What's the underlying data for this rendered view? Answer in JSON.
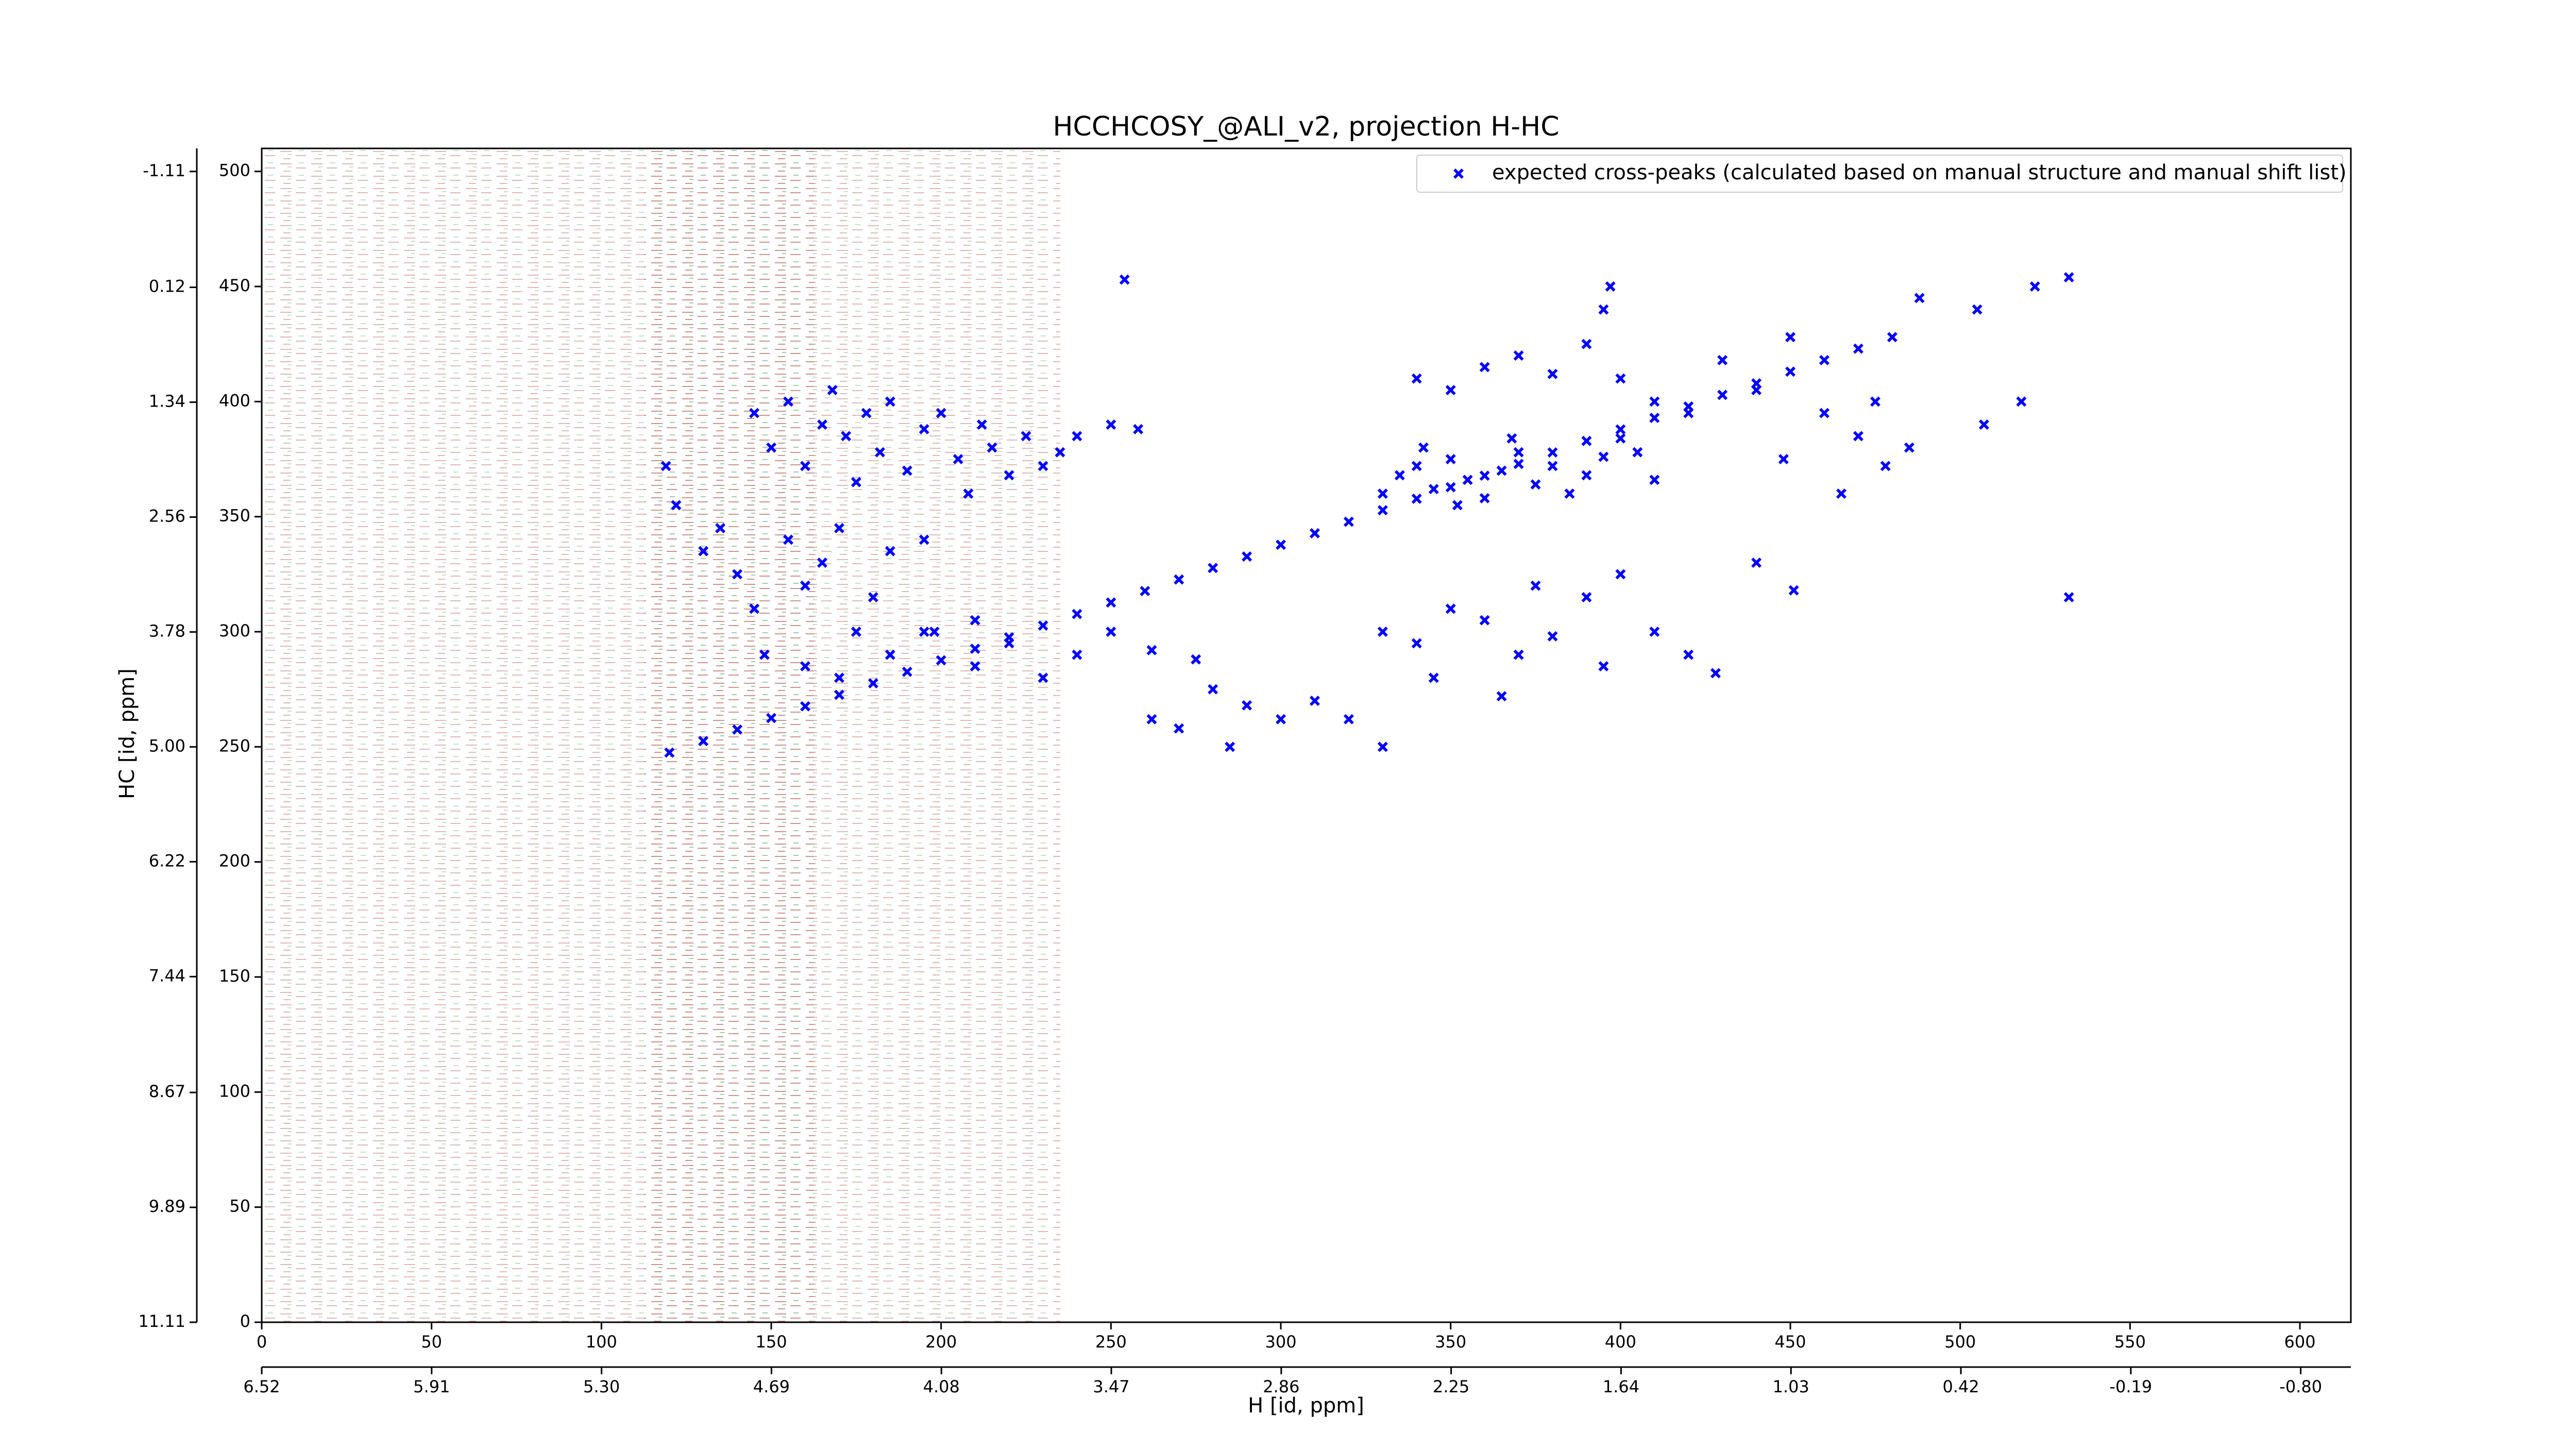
{
  "chart_data": {
    "type": "scatter",
    "title": "HCCHCOSY_@ALI_v2, projection H-HC",
    "x_label": "H [id, ppm]",
    "y_label": "HC [id, ppm]",
    "xlim": [
      0,
      615
    ],
    "xticks": [
      0,
      50,
      100,
      150,
      200,
      250,
      300,
      350,
      400,
      450,
      500,
      550,
      600
    ],
    "x2lim": [
      6.52,
      -0.98
    ],
    "x2ticks": [
      6.52,
      5.91,
      {
        "value": 5.3,
        "label": "5.30"
      },
      4.69,
      4.08,
      3.47,
      2.86,
      2.25,
      1.64,
      1.03,
      0.42,
      -0.19,
      {
        "value": -0.8,
        "label": "-0.80"
      }
    ],
    "ylim": [
      0,
      510
    ],
    "yticks": [
      0,
      50,
      100,
      150,
      200,
      250,
      300,
      350,
      400,
      450,
      500
    ],
    "y2lim": [
      11.11,
      -1.355
    ],
    "y2ticks": [
      11.11,
      9.89,
      8.67,
      7.44,
      6.22,
      {
        "value": 5.0,
        "label": "5.00"
      },
      3.78,
      2.56,
      1.34,
      0.12,
      -1.11
    ],
    "legend": "upper right",
    "grid": false,
    "series": [
      {
        "name": "expected cross-peaks (calculated based on manual structure and manual shift list)",
        "color": "#0000ff",
        "x": [
          120,
          130,
          140,
          150,
          160,
          170,
          180,
          190,
          200,
          210,
          220,
          230,
          240,
          250,
          260,
          270,
          280,
          290,
          300,
          310,
          320,
          330,
          340,
          350,
          360,
          370,
          380,
          390,
          400,
          410,
          420,
          430,
          440,
          450,
          460,
          470,
          480,
          145,
          150,
          155,
          160,
          165,
          168,
          172,
          175,
          178,
          182,
          185,
          190,
          195,
          200,
          205,
          208,
          212,
          215,
          220,
          225,
          230,
          235,
          240,
          250,
          258,
          119,
          122,
          130,
          135,
          140,
          145,
          148,
          155,
          160,
          165,
          170,
          175,
          180,
          185,
          195,
          198,
          160,
          170,
          185,
          195,
          210,
          220,
          230,
          240,
          250,
          262,
          210,
          275,
          262,
          270,
          280,
          290,
          300,
          310,
          320,
          330,
          285,
          330,
          335,
          340,
          345,
          350,
          355,
          360,
          365,
          370,
          375,
          380,
          385,
          390,
          395,
          400,
          405,
          410,
          342,
          352,
          368,
          340,
          350,
          360,
          370,
          380,
          390,
          400,
          410,
          420,
          430,
          440,
          450,
          460,
          470,
          478,
          485,
          475,
          448,
          465,
          395,
          330,
          340,
          350,
          360,
          370,
          380,
          390,
          400,
          410,
          420,
          428,
          395,
          375,
          345,
          365,
          440,
          532,
          532,
          522,
          507,
          397,
          254,
          505,
          488,
          518,
          451
        ],
        "values": [
          247.5,
          252.5,
          257.5,
          262.5,
          267.6,
          272.6,
          277.6,
          282.6,
          287.6,
          292.6,
          297.6,
          302.7,
          307.7,
          312.7,
          317.7,
          322.7,
          327.7,
          332.7,
          337.8,
          342.8,
          347.8,
          352.8,
          357.8,
          362.8,
          367.8,
          372.9,
          377.9,
          382.9,
          387.9,
          392.9,
          397.9,
          402.9,
          407.9,
          413,
          418,
          423,
          428,
          395,
          380,
          400,
          372,
          390,
          405,
          385,
          365,
          395,
          378,
          400,
          370,
          388,
          395,
          375,
          360,
          390,
          380,
          368,
          385,
          372,
          378,
          385,
          390,
          388,
          372,
          355,
          335,
          345,
          325,
          310,
          290,
          340,
          320,
          330,
          345,
          300,
          315,
          335,
          340,
          300,
          285,
          280,
          290,
          300,
          285,
          295,
          280,
          290,
          300,
          292,
          305,
          288,
          262,
          258,
          275,
          268,
          262,
          270,
          262,
          250,
          250,
          360,
          368,
          372,
          362,
          375,
          366,
          358,
          370,
          378,
          364,
          372,
          360,
          368,
          376,
          384,
          378,
          366,
          380,
          355,
          384,
          410,
          405,
          415,
          420,
          412,
          425,
          410,
          400,
          395,
          418,
          405,
          428,
          395,
          385,
          372,
          380,
          400,
          375,
          360,
          440,
          300,
          295,
          310,
          305,
          290,
          298,
          315,
          325,
          300,
          290,
          282,
          285,
          320,
          280,
          272,
          330,
          454,
          315,
          450,
          390,
          450,
          453,
          440,
          445,
          400,
          318
        ]
      }
    ]
  }
}
